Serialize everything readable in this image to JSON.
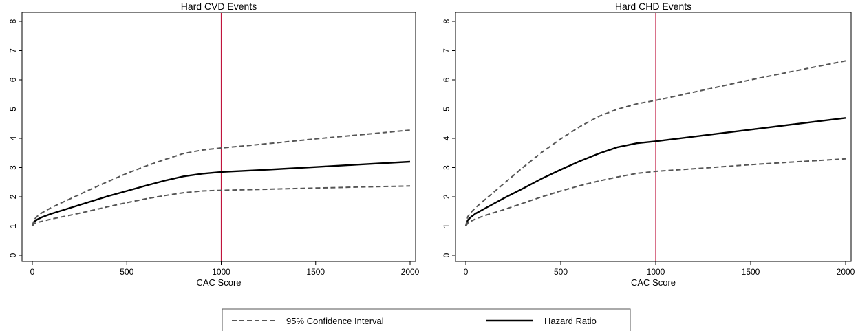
{
  "chart_data": [
    {
      "type": "line",
      "title": "Hard CVD Events",
      "xlabel": "CAC Score",
      "ylabel": "",
      "xlim": [
        0,
        2000
      ],
      "ylim": [
        0,
        8
      ],
      "xticks": [
        "0",
        "500",
        "1000",
        "1500",
        "2000"
      ],
      "yticks": [
        "0",
        "1",
        "2",
        "3",
        "4",
        "5",
        "6",
        "7",
        "8"
      ],
      "grid": false,
      "reference_line": {
        "x": 1000,
        "color": "#c0143c"
      },
      "series": [
        {
          "name": "Hazard Ratio",
          "style": "solid",
          "x": [
            0,
            10,
            25,
            50,
            100,
            200,
            300,
            400,
            500,
            600,
            700,
            800,
            900,
            1000,
            1250,
            1500,
            1750,
            2000
          ],
          "y": [
            1.0,
            1.15,
            1.22,
            1.3,
            1.42,
            1.62,
            1.82,
            2.02,
            2.2,
            2.38,
            2.55,
            2.7,
            2.79,
            2.85,
            2.93,
            3.02,
            3.11,
            3.2
          ]
        },
        {
          "name": "95% Confidence Interval",
          "style": "dashed",
          "x": [
            0,
            10,
            25,
            50,
            100,
            200,
            300,
            400,
            500,
            600,
            700,
            800,
            900,
            1000,
            1250,
            1500,
            1750,
            2000
          ],
          "y": [
            1.0,
            1.22,
            1.33,
            1.45,
            1.63,
            1.93,
            2.23,
            2.52,
            2.8,
            3.05,
            3.27,
            3.48,
            3.6,
            3.67,
            3.82,
            3.98,
            4.13,
            4.28
          ]
        },
        {
          "name": "95% Confidence Interval",
          "style": "dashed",
          "x": [
            0,
            10,
            25,
            50,
            100,
            200,
            300,
            400,
            500,
            600,
            700,
            800,
            900,
            1000,
            1250,
            1500,
            1750,
            2000
          ],
          "y": [
            1.0,
            1.08,
            1.12,
            1.16,
            1.24,
            1.37,
            1.51,
            1.66,
            1.8,
            1.93,
            2.04,
            2.14,
            2.2,
            2.22,
            2.26,
            2.3,
            2.34,
            2.37
          ]
        }
      ]
    },
    {
      "type": "line",
      "title": "Hard CHD Events",
      "xlabel": "CAC Score",
      "ylabel": "",
      "xlim": [
        0,
        2000
      ],
      "ylim": [
        0,
        8
      ],
      "xticks": [
        "0",
        "500",
        "1000",
        "1500",
        "2000"
      ],
      "yticks": [
        "0",
        "1",
        "2",
        "3",
        "4",
        "5",
        "6",
        "7",
        "8"
      ],
      "grid": false,
      "reference_line": {
        "x": 1000,
        "color": "#c0143c"
      },
      "series": [
        {
          "name": "Hazard Ratio",
          "style": "solid",
          "x": [
            0,
            10,
            25,
            50,
            100,
            200,
            300,
            400,
            500,
            600,
            700,
            800,
            900,
            1000,
            1250,
            1500,
            1750,
            2000
          ],
          "y": [
            1.0,
            1.2,
            1.3,
            1.42,
            1.6,
            1.95,
            2.28,
            2.62,
            2.93,
            3.22,
            3.48,
            3.7,
            3.83,
            3.9,
            4.1,
            4.3,
            4.5,
            4.7
          ]
        },
        {
          "name": "95% Confidence Interval",
          "style": "dashed",
          "x": [
            0,
            10,
            25,
            50,
            100,
            200,
            300,
            400,
            500,
            600,
            700,
            800,
            900,
            1000,
            1250,
            1500,
            1750,
            2000
          ],
          "y": [
            1.0,
            1.32,
            1.45,
            1.62,
            1.9,
            2.45,
            3.0,
            3.52,
            3.98,
            4.4,
            4.75,
            5.0,
            5.18,
            5.3,
            5.65,
            6.0,
            6.33,
            6.65
          ]
        },
        {
          "name": "95% Confidence Interval",
          "style": "dashed",
          "x": [
            0,
            10,
            25,
            50,
            100,
            200,
            300,
            400,
            500,
            600,
            700,
            800,
            900,
            1000,
            1250,
            1500,
            1750,
            2000
          ],
          "y": [
            1.0,
            1.1,
            1.16,
            1.24,
            1.36,
            1.56,
            1.78,
            2.0,
            2.2,
            2.38,
            2.54,
            2.68,
            2.8,
            2.87,
            2.98,
            3.1,
            3.2,
            3.3
          ]
        }
      ]
    }
  ],
  "legend": {
    "position": "bottom-center",
    "items": [
      {
        "label": "95% Confidence Interval",
        "style": "dashed"
      },
      {
        "label": "Hazard Ratio",
        "style": "solid"
      }
    ]
  },
  "colors": {
    "axis": "#000000",
    "hazard_line": "#000000",
    "ci_line": "#555555",
    "reference_line": "#c0143c",
    "background": "#ffffff"
  }
}
